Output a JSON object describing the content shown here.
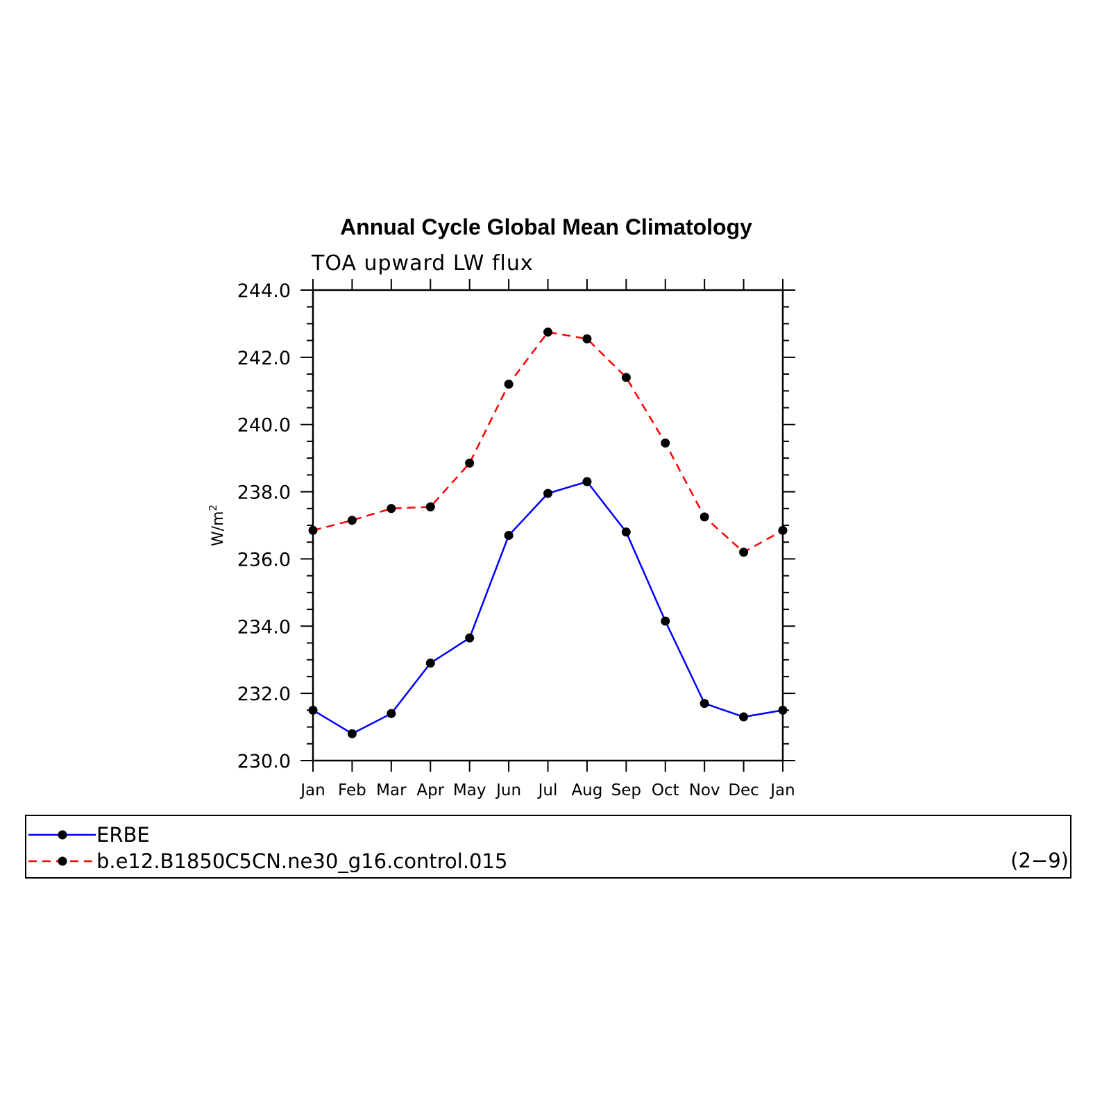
{
  "chart_data": {
    "type": "line",
    "title": "Annual Cycle Global Mean Climatology",
    "subtitle": "TOA upward LW flux",
    "ylabel_base": "W/m",
    "ylabel_sup": "2",
    "categories": [
      "Jan",
      "Feb",
      "Mar",
      "Apr",
      "May",
      "Jun",
      "Jul",
      "Aug",
      "Sep",
      "Oct",
      "Nov",
      "Dec",
      "Jan"
    ],
    "ylim": [
      230.0,
      244.0
    ],
    "ytick_labels": [
      "230.0",
      "232.0",
      "234.0",
      "236.0",
      "238.0",
      "240.0",
      "242.0",
      "244.0"
    ],
    "yticks": [
      230,
      232,
      234,
      236,
      238,
      240,
      242,
      244
    ],
    "grid": false,
    "legend_position": "bottom",
    "series": [
      {
        "name": "ERBE",
        "color": "#0000ff",
        "dash": "solid",
        "values": [
          231.5,
          230.8,
          231.4,
          232.9,
          233.65,
          236.7,
          237.95,
          238.3,
          236.8,
          234.15,
          231.7,
          231.3,
          231.5
        ]
      },
      {
        "name": "b.e12.B1850C5CN.ne30_g16.control.015",
        "color": "#ff0000",
        "dash": "dashed",
        "values": [
          236.85,
          237.15,
          237.5,
          237.55,
          238.85,
          241.2,
          242.75,
          242.55,
          241.4,
          239.45,
          237.25,
          236.2,
          236.85
        ]
      }
    ],
    "panel_label": "(2−9)"
  }
}
